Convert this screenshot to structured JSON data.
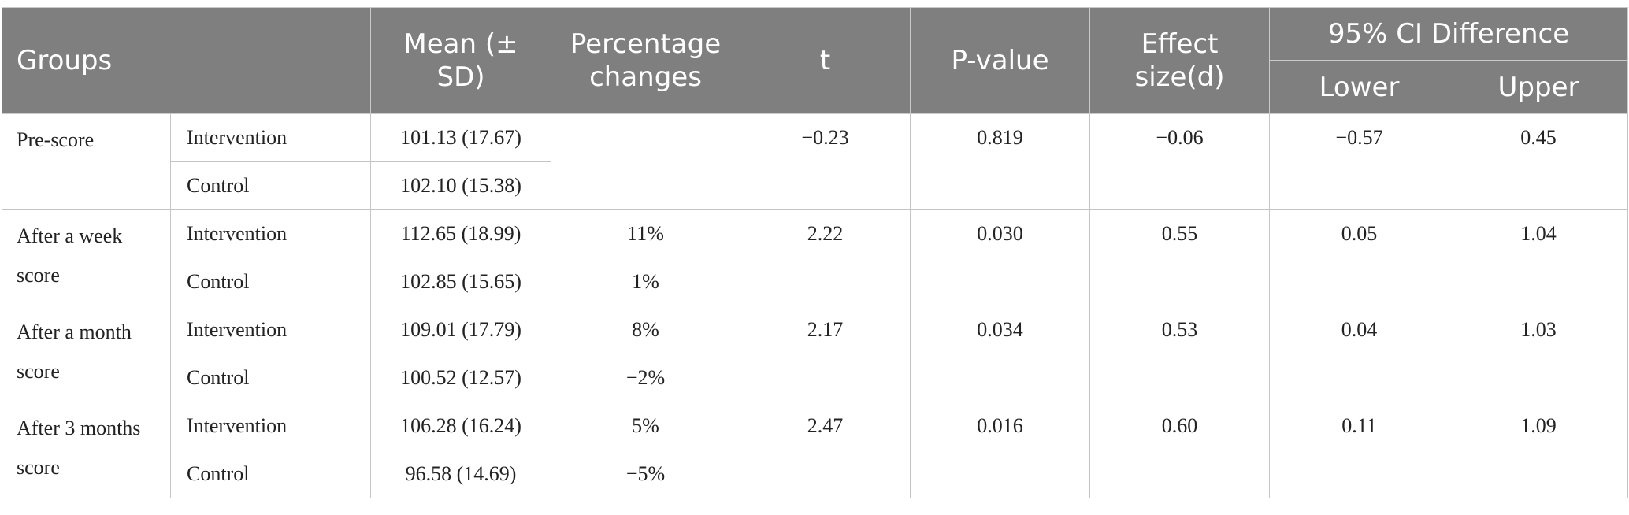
{
  "header": {
    "groups": "Groups",
    "mean": "Mean (± SD)",
    "percentage": "Percentage changes",
    "t": "t",
    "p_value": "P-value",
    "effect_size": "Effect size(d)",
    "ci": "95% CI Difference",
    "lower": "Lower",
    "upper": "Upper"
  },
  "rows": [
    {
      "group": "Pre-score",
      "intervention": {
        "label": "Intervention",
        "mean": "101.13 (17.67)",
        "pct": ""
      },
      "control": {
        "label": "Control",
        "mean": "102.10 (15.38)",
        "pct": ""
      },
      "t": "−0.23",
      "p": "0.819",
      "d": "−0.06",
      "lower": "−0.57",
      "upper": "0.45"
    },
    {
      "group": "After a week score",
      "intervention": {
        "label": "Intervention",
        "mean": "112.65 (18.99)",
        "pct": "11%"
      },
      "control": {
        "label": "Control",
        "mean": "102.85 (15.65)",
        "pct": "1%"
      },
      "t": "2.22",
      "p": "0.030",
      "d": "0.55",
      "lower": "0.05",
      "upper": "1.04"
    },
    {
      "group": "After a month score",
      "intervention": {
        "label": "Intervention",
        "mean": "109.01 (17.79)",
        "pct": "8%"
      },
      "control": {
        "label": "Control",
        "mean": "100.52 (12.57)",
        "pct": "−2%"
      },
      "t": "2.17",
      "p": "0.034",
      "d": "0.53",
      "lower": "0.04",
      "upper": "1.03"
    },
    {
      "group": "After 3 months score",
      "intervention": {
        "label": "Intervention",
        "mean": "106.28 (16.24)",
        "pct": "5%"
      },
      "control": {
        "label": "Control",
        "mean": "96.58 (14.69)",
        "pct": "−5%"
      },
      "t": "2.47",
      "p": "0.016",
      "d": "0.60",
      "lower": "0.11",
      "upper": "1.09"
    }
  ]
}
